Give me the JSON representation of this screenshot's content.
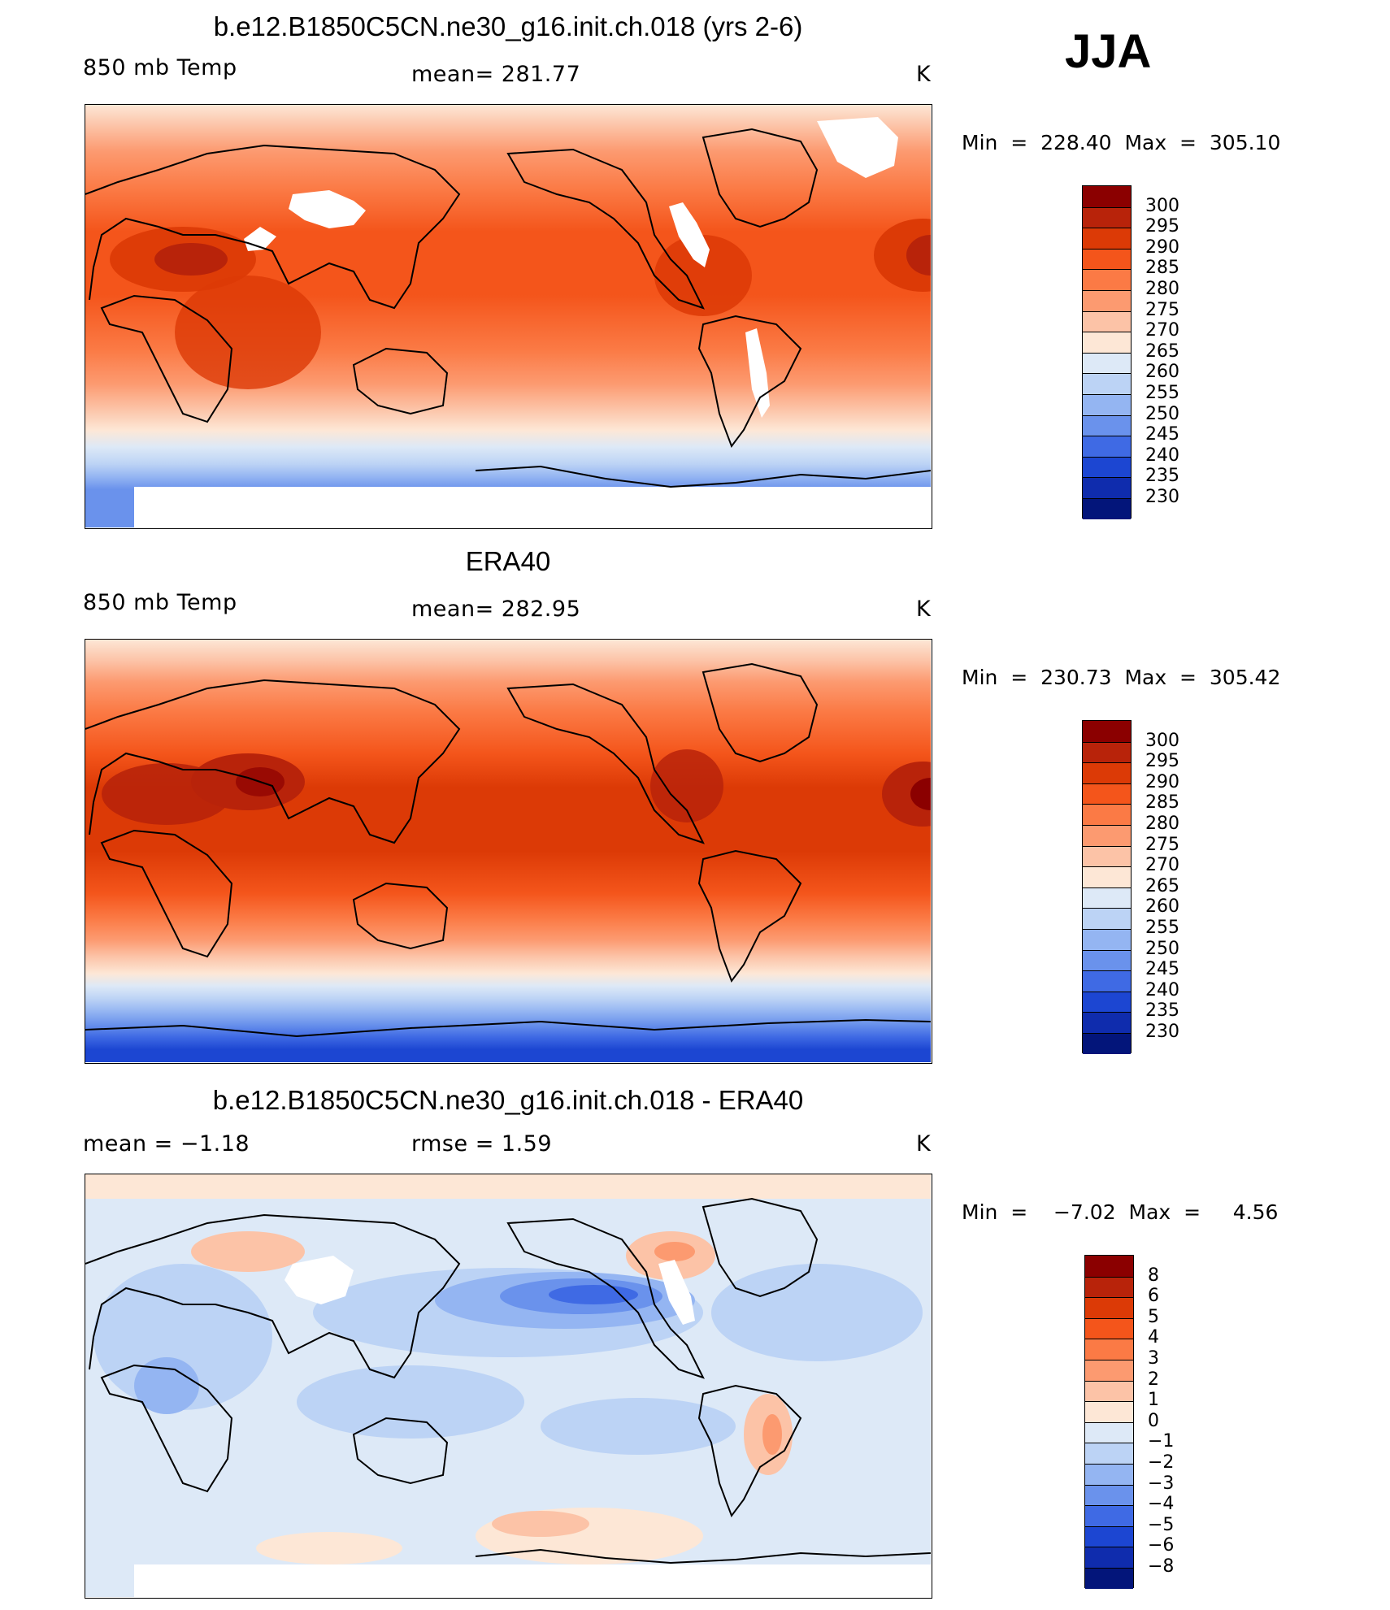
{
  "season": "JJA",
  "panels": [
    {
      "id": "model",
      "title": "b.e12.B1850C5CN.ne30_g16.init.ch.018 (yrs 2-6)",
      "left_label": "850 mb Temp",
      "center_label": "mean=  281.77",
      "units": "K",
      "minmax": "Min  =  228.40  Max  =  305.10",
      "masked_topography": true
    },
    {
      "id": "obs",
      "title": "ERA40",
      "left_label": "850 mb Temp",
      "center_label": "mean=  282.95",
      "units": "K",
      "minmax": "Min  =  230.73  Max  =  305.42",
      "masked_topography": false
    },
    {
      "id": "diff",
      "title": "b.e12.B1850C5CN.ne30_g16.init.ch.018 - ERA40",
      "left_label": "mean  =    −1.18",
      "center_label": "rmse  =     1.59",
      "units": "K",
      "minmax": "Min  =    −7.02  Max  =     4.56",
      "masked_topography": true
    }
  ],
  "colorbars": {
    "absolute": {
      "labels": [
        "300",
        "295",
        "290",
        "285",
        "280",
        "275",
        "270",
        "265",
        "260",
        "255",
        "250",
        "245",
        "240",
        "235",
        "230"
      ],
      "colors": [
        "#8b0000",
        "#b8230a",
        "#dc3a06",
        "#f4551b",
        "#fb7a45",
        "#fc9a70",
        "#fcc3a7",
        "#fde7d6",
        "#dde9f7",
        "#bcd3f5",
        "#94b5f2",
        "#6a92ec",
        "#3f6ae4",
        "#1c46d2",
        "#0f2cad",
        "#03157a"
      ]
    },
    "difference": {
      "labels": [
        "8",
        "6",
        "5",
        "4",
        "3",
        "2",
        "1",
        "0",
        "−1",
        "−2",
        "−3",
        "−4",
        "−5",
        "−6",
        "−8"
      ],
      "colors": [
        "#8b0000",
        "#b8230a",
        "#dc3a06",
        "#f4551b",
        "#fb7a45",
        "#fc9a70",
        "#fcc3a7",
        "#fde7d6",
        "#dde9f7",
        "#bcd3f5",
        "#94b5f2",
        "#6a92ec",
        "#3f6ae4",
        "#1c46d2",
        "#0f2cad",
        "#03157a"
      ]
    }
  }
}
